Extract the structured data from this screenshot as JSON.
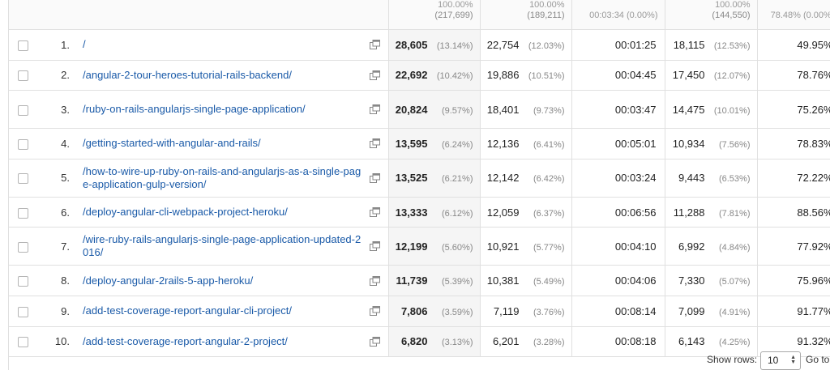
{
  "summary": {
    "pageviews_pct_clipped": "100.00%",
    "pageviews_total": "(217,699)",
    "unique_pct_clipped": "100.00%",
    "unique_total": "(189,211)",
    "avg_time_clipped": "00:03:34 (0.00%)",
    "entrances_pct_clipped": "100.00%",
    "entrances_total": "(144,550)",
    "bounce_clipped": "78.48% (0.00%)"
  },
  "rows": [
    {
      "index": "1.",
      "page": "/",
      "pageviews": "28,605",
      "pageviews_pct": "(13.14%)",
      "unique": "22,754",
      "unique_pct": "(12.03%)",
      "avg_time": "00:01:25",
      "entrances": "18,115",
      "entrances_pct": "(12.53%)",
      "bounce": "49.95%"
    },
    {
      "index": "2.",
      "page": "/angular-2-tour-heroes-tutorial-rails-backend/",
      "pageviews": "22,692",
      "pageviews_pct": "(10.42%)",
      "unique": "19,886",
      "unique_pct": "(10.51%)",
      "avg_time": "00:04:45",
      "entrances": "17,450",
      "entrances_pct": "(12.07%)",
      "bounce": "78.76%"
    },
    {
      "index": "3.",
      "page": "/ruby-on-rails-angularjs-single-page-application/",
      "pageviews": "20,824",
      "pageviews_pct": "(9.57%)",
      "unique": "18,401",
      "unique_pct": "(9.73%)",
      "avg_time": "00:03:47",
      "entrances": "14,475",
      "entrances_pct": "(10.01%)",
      "bounce": "75.26%"
    },
    {
      "index": "4.",
      "page": "/getting-started-with-angular-and-rails/",
      "pageviews": "13,595",
      "pageviews_pct": "(6.24%)",
      "unique": "12,136",
      "unique_pct": "(6.41%)",
      "avg_time": "00:05:01",
      "entrances": "10,934",
      "entrances_pct": "(7.56%)",
      "bounce": "78.83%"
    },
    {
      "index": "5.",
      "page": "/how-to-wire-up-ruby-on-rails-and-angularjs-as-a-single-page-application-gulp-version/",
      "pageviews": "13,525",
      "pageviews_pct": "(6.21%)",
      "unique": "12,142",
      "unique_pct": "(6.42%)",
      "avg_time": "00:03:24",
      "entrances": "9,443",
      "entrances_pct": "(6.53%)",
      "bounce": "72.22%"
    },
    {
      "index": "6.",
      "page": "/deploy-angular-cli-webpack-project-heroku/",
      "pageviews": "13,333",
      "pageviews_pct": "(6.12%)",
      "unique": "12,059",
      "unique_pct": "(6.37%)",
      "avg_time": "00:06:56",
      "entrances": "11,288",
      "entrances_pct": "(7.81%)",
      "bounce": "88.56%"
    },
    {
      "index": "7.",
      "page": "/wire-ruby-rails-angularjs-single-page-application-updated-2016/",
      "pageviews": "12,199",
      "pageviews_pct": "(5.60%)",
      "unique": "10,921",
      "unique_pct": "(5.77%)",
      "avg_time": "00:04:10",
      "entrances": "6,992",
      "entrances_pct": "(4.84%)",
      "bounce": "77.92%"
    },
    {
      "index": "8.",
      "page": "/deploy-angular-2rails-5-app-heroku/",
      "pageviews": "11,739",
      "pageviews_pct": "(5.39%)",
      "unique": "10,381",
      "unique_pct": "(5.49%)",
      "avg_time": "00:04:06",
      "entrances": "7,330",
      "entrances_pct": "(5.07%)",
      "bounce": "75.96%"
    },
    {
      "index": "9.",
      "page": "/add-test-coverage-report-angular-cli-project/",
      "pageviews": "7,806",
      "pageviews_pct": "(3.59%)",
      "unique": "7,119",
      "unique_pct": "(3.76%)",
      "avg_time": "00:08:14",
      "entrances": "7,099",
      "entrances_pct": "(4.91%)",
      "bounce": "91.77%"
    },
    {
      "index": "10.",
      "page": "/add-test-coverage-report-angular-2-project/",
      "pageviews": "6,820",
      "pageviews_pct": "(3.13%)",
      "unique": "6,201",
      "unique_pct": "(3.28%)",
      "avg_time": "00:08:18",
      "entrances": "6,143",
      "entrances_pct": "(4.25%)",
      "bounce": "91.32%"
    }
  ],
  "footer": {
    "show_rows_label": "Show rows:",
    "show_rows_value": "10",
    "goto_label": "Go to:"
  },
  "icons": {
    "open_page": "external-window-icon"
  }
}
